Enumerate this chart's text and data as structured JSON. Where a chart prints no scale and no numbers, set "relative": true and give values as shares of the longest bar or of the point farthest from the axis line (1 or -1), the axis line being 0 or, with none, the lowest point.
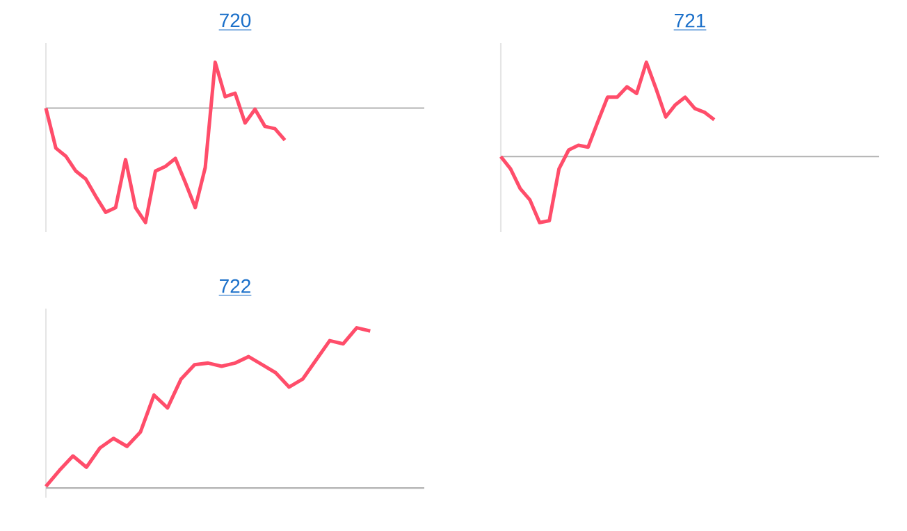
{
  "chart_data": [
    {
      "type": "line",
      "title": "720",
      "relative": true,
      "marker": "none",
      "line_style": "solid",
      "categories": [
        null,
        null,
        null,
        null,
        null,
        null,
        null,
        null,
        null,
        null,
        null,
        null,
        null,
        null,
        null,
        null,
        null,
        null,
        null,
        null,
        null,
        null,
        null,
        null,
        null,
        null,
        null,
        null,
        null,
        null,
        null,
        null,
        null,
        null,
        null,
        null,
        null,
        null,
        null
      ],
      "series": [
        {
          "color": "#ff4d6a",
          "values": [
            0,
            -0.35,
            -0.42,
            -0.55,
            -0.62,
            -0.77,
            -0.91,
            -0.87,
            -0.45,
            -0.87,
            -1,
            -0.55,
            -0.51,
            -0.44,
            -0.65,
            -0.87,
            -0.52,
            0.4,
            0.1,
            0.13,
            -0.13,
            -0.01,
            -0.16,
            -0.18,
            -0.28,
            null,
            null,
            null,
            null,
            null,
            null,
            null,
            null,
            null,
            null,
            null,
            null,
            null,
            null
          ]
        }
      ]
    },
    {
      "type": "line",
      "title": "721",
      "relative": true,
      "marker": "none",
      "line_style": "solid",
      "categories": [
        null,
        null,
        null,
        null,
        null,
        null,
        null,
        null,
        null,
        null,
        null,
        null,
        null,
        null,
        null,
        null,
        null,
        null,
        null,
        null,
        null,
        null,
        null,
        null,
        null,
        null,
        null,
        null,
        null,
        null,
        null,
        null,
        null,
        null,
        null,
        null,
        null,
        null,
        null,
        null
      ],
      "series": [
        {
          "color": "#ff4d6a",
          "values": [
            0,
            -0.13,
            -0.34,
            -0.46,
            -0.7,
            -0.68,
            -0.13,
            0.07,
            0.12,
            0.1,
            0.37,
            0.63,
            0.63,
            0.74,
            0.67,
            1,
            0.72,
            0.42,
            0.55,
            0.63,
            0.51,
            0.47,
            0.39,
            null,
            null,
            null,
            null,
            null,
            null,
            null,
            null,
            null,
            null,
            null,
            null,
            null,
            null,
            null,
            null,
            null
          ]
        }
      ]
    },
    {
      "type": "line",
      "title": "722",
      "relative": true,
      "marker": "none",
      "line_style": "solid",
      "categories": [
        null,
        null,
        null,
        null,
        null,
        null,
        null,
        null,
        null,
        null,
        null,
        null,
        null,
        null,
        null,
        null,
        null,
        null,
        null,
        null,
        null,
        null,
        null,
        null,
        null,
        null,
        null,
        null,
        null
      ],
      "series": [
        {
          "color": "#ff4d6a",
          "values": [
            0.01,
            0.11,
            0.2,
            0.13,
            0.25,
            0.31,
            0.26,
            0.35,
            0.58,
            0.5,
            0.68,
            0.77,
            0.78,
            0.76,
            0.78,
            0.82,
            0.77,
            0.72,
            0.63,
            0.68,
            0.8,
            0.92,
            0.9,
            1,
            0.98,
            null,
            null,
            null,
            null
          ]
        }
      ]
    }
  ]
}
